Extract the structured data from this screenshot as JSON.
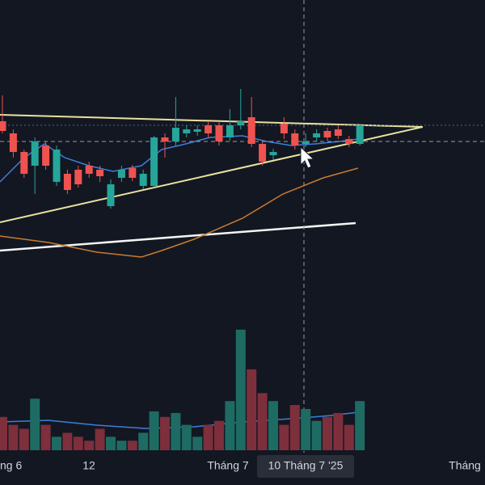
{
  "chart_data": {
    "type": "candlestick",
    "colors": {
      "up": "#26a69a",
      "down": "#ef5350",
      "up_volume": "#1e6b63",
      "down_volume": "#7d2f3c"
    },
    "ylim": [
      0,
      330
    ],
    "volume_lim": [
      0,
      160
    ],
    "open": [
      180,
      165,
      142,
      125,
      150,
      105,
      115,
      120,
      125,
      120,
      75,
      110,
      122,
      100,
      100,
      160,
      155,
      165,
      167,
      175,
      175,
      160,
      175,
      185,
      152,
      138,
      177,
      165,
      152,
      160,
      168,
      170,
      158,
      152
    ],
    "high": [
      212,
      170,
      145,
      160,
      155,
      150,
      120,
      125,
      130,
      125,
      108,
      125,
      126,
      120,
      162,
      165,
      210,
      175,
      175,
      180,
      180,
      195,
      220,
      210,
      155,
      146,
      185,
      170,
      165,
      170,
      172,
      175,
      162,
      177
    ],
    "low": [
      165,
      135,
      110,
      90,
      120,
      100,
      90,
      98,
      110,
      105,
      72,
      105,
      106,
      96,
      98,
      135,
      150,
      160,
      162,
      160,
      150,
      156,
      170,
      148,
      125,
      132,
      158,
      145,
      148,
      155,
      156,
      158,
      148,
      150
    ],
    "close": [
      168,
      142,
      115,
      155,
      125,
      145,
      95,
      102,
      115,
      112,
      102,
      120,
      110,
      115,
      160,
      155,
      172,
      170,
      170,
      165,
      155,
      175,
      180,
      152,
      130,
      142,
      165,
      150,
      155,
      165,
      160,
      162,
      152,
      175
    ],
    "volume": [
      42,
      32,
      27,
      65,
      32,
      17,
      22,
      17,
      12,
      27,
      17,
      12,
      12,
      22,
      49,
      42,
      47,
      32,
      17,
      32,
      37,
      62,
      152,
      102,
      72,
      62,
      32,
      57,
      52,
      37,
      42,
      47,
      32,
      62
    ],
    "x_labels": [
      "ng 6",
      "12",
      "Tháng 7",
      "10 Tháng 7 '25",
      "Tháng"
    ]
  }
}
